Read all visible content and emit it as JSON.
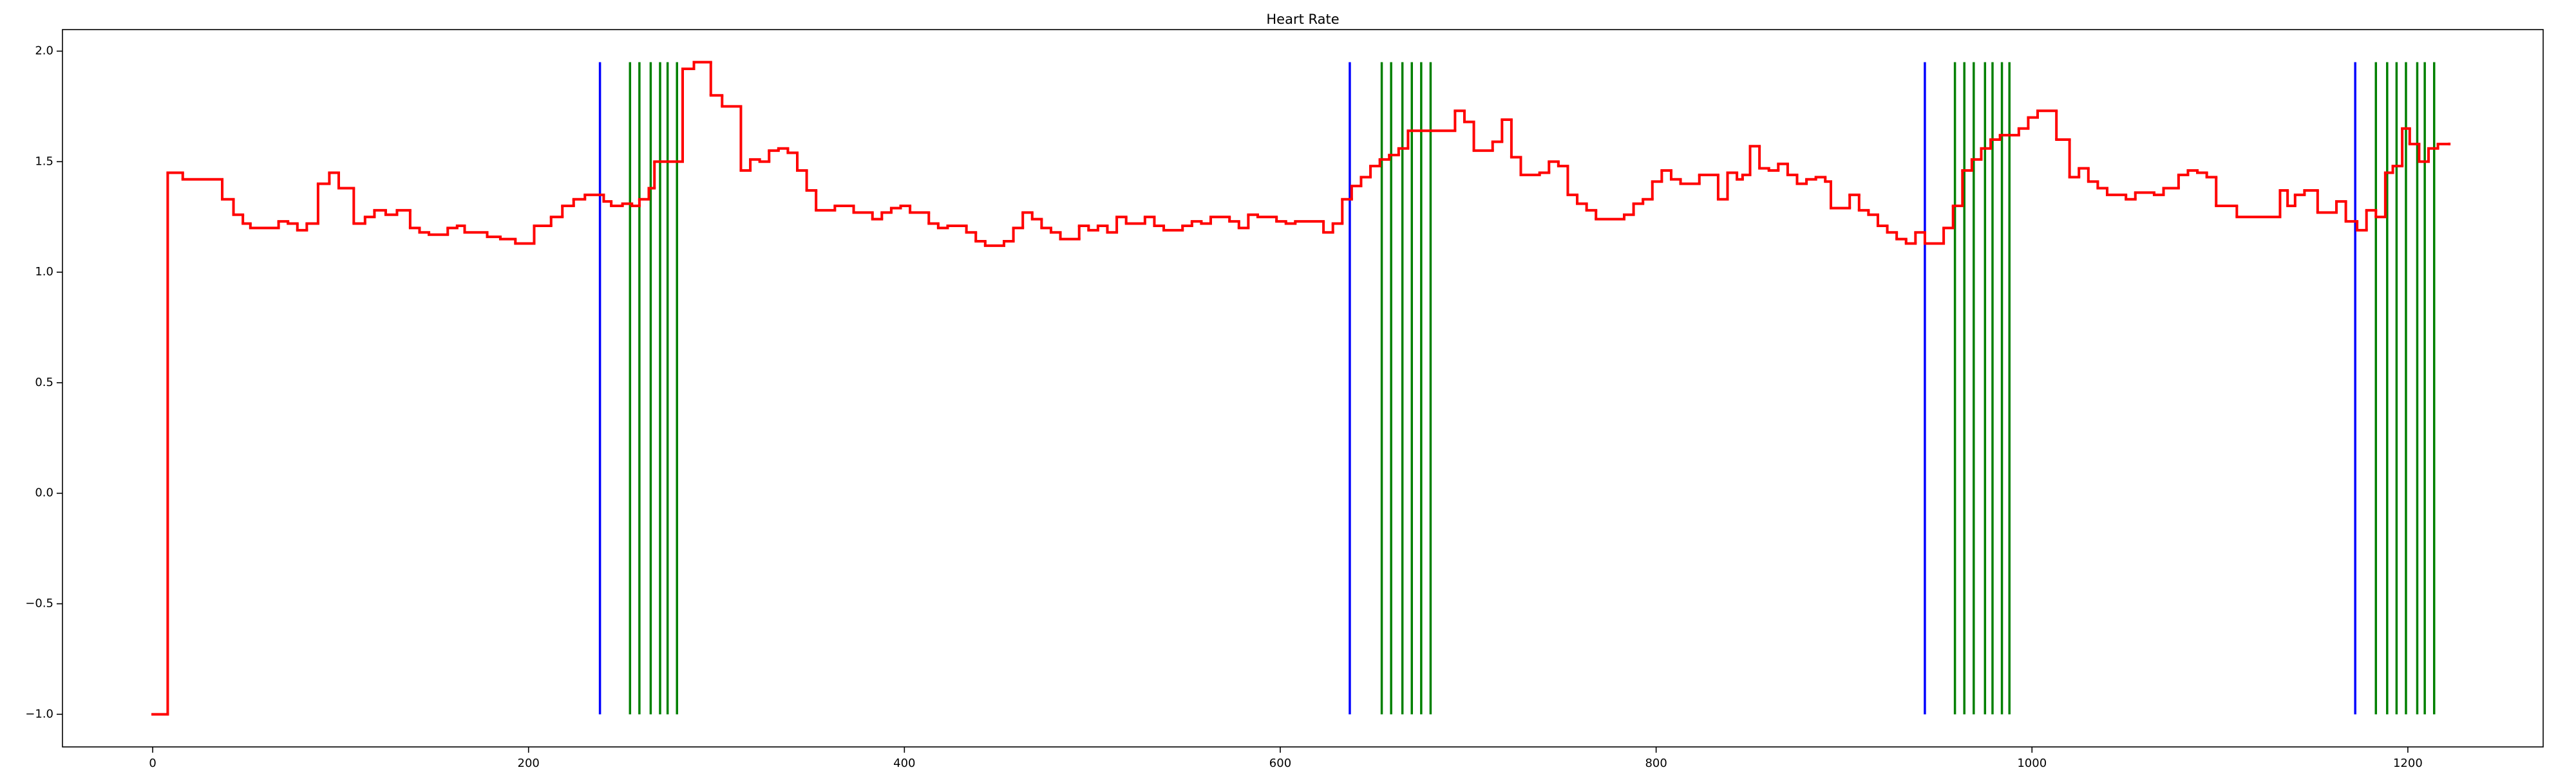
{
  "chart_data": {
    "type": "step",
    "title": "Heart Rate",
    "x": [
      0,
      8,
      16,
      37,
      43,
      48,
      52,
      67,
      72,
      77,
      82,
      88,
      94,
      99,
      107,
      113,
      118,
      124,
      130,
      137,
      142,
      147,
      157,
      162,
      166,
      178,
      185,
      193,
      203,
      212,
      218,
      224,
      230,
      240,
      244,
      250,
      255,
      259,
      264,
      267,
      282,
      288,
      297,
      303,
      313,
      318,
      323,
      328,
      333,
      338,
      343,
      348,
      353,
      363,
      373,
      383,
      388,
      393,
      398,
      403,
      413,
      418,
      423,
      433,
      438,
      443,
      453,
      458,
      463,
      468,
      473,
      478,
      483,
      493,
      498,
      503,
      508,
      513,
      518,
      528,
      533,
      538,
      548,
      553,
      558,
      563,
      573,
      578,
      583,
      588,
      598,
      603,
      608,
      623,
      628,
      633,
      638,
      643,
      648,
      653,
      658,
      663,
      668,
      693,
      698,
      703,
      713,
      718,
      723,
      728,
      738,
      743,
      748,
      753,
      758,
      763,
      768,
      783,
      788,
      793,
      798,
      803,
      808,
      813,
      823,
      833,
      838,
      843,
      846,
      850,
      855,
      860,
      865,
      870,
      875,
      880,
      885,
      890,
      893,
      903,
      908,
      913,
      918,
      923,
      928,
      933,
      938,
      943,
      953,
      958,
      963,
      968,
      973,
      978,
      983,
      993,
      998,
      1003,
      1013,
      1020,
      1025,
      1030,
      1035,
      1040,
      1050,
      1055,
      1065,
      1070,
      1078,
      1083,
      1088,
      1093,
      1098,
      1109,
      1132,
      1136,
      1140,
      1145,
      1152,
      1162,
      1167,
      1173,
      1178,
      1183,
      1188,
      1192,
      1197,
      1201,
      1206,
      1211,
      1216,
      1222
    ],
    "series": [
      {
        "color": "#ff0000",
        "values": [
          -1,
          1.45,
          1.42,
          1.33,
          1.26,
          1.22,
          1.2,
          1.23,
          1.22,
          1.19,
          1.22,
          1.4,
          1.45,
          1.38,
          1.22,
          1.25,
          1.28,
          1.26,
          1.28,
          1.2,
          1.18,
          1.17,
          1.2,
          1.21,
          1.18,
          1.16,
          1.15,
          1.13,
          1.21,
          1.25,
          1.3,
          1.33,
          1.35,
          1.32,
          1.3,
          1.31,
          1.3,
          1.33,
          1.38,
          1.5,
          1.92,
          1.95,
          1.8,
          1.75,
          1.46,
          1.51,
          1.5,
          1.55,
          1.56,
          1.54,
          1.46,
          1.37,
          1.28,
          1.3,
          1.27,
          1.24,
          1.27,
          1.29,
          1.3,
          1.27,
          1.22,
          1.2,
          1.21,
          1.18,
          1.14,
          1.12,
          1.14,
          1.2,
          1.27,
          1.24,
          1.2,
          1.18,
          1.15,
          1.21,
          1.19,
          1.21,
          1.18,
          1.25,
          1.22,
          1.25,
          1.21,
          1.19,
          1.21,
          1.23,
          1.22,
          1.25,
          1.23,
          1.2,
          1.26,
          1.25,
          1.23,
          1.22,
          1.23,
          1.18,
          1.22,
          1.33,
          1.39,
          1.43,
          1.48,
          1.51,
          1.53,
          1.56,
          1.64,
          1.73,
          1.68,
          1.55,
          1.59,
          1.69,
          1.52,
          1.44,
          1.45,
          1.5,
          1.48,
          1.35,
          1.31,
          1.28,
          1.24,
          1.26,
          1.31,
          1.33,
          1.41,
          1.46,
          1.42,
          1.4,
          1.44,
          1.33,
          1.45,
          1.42,
          1.44,
          1.57,
          1.47,
          1.46,
          1.49,
          1.44,
          1.4,
          1.42,
          1.43,
          1.41,
          1.29,
          1.35,
          1.28,
          1.26,
          1.21,
          1.18,
          1.15,
          1.13,
          1.18,
          1.13,
          1.2,
          1.3,
          1.46,
          1.51,
          1.56,
          1.6,
          1.62,
          1.65,
          1.7,
          1.73,
          1.6,
          1.43,
          1.47,
          1.41,
          1.38,
          1.35,
          1.33,
          1.36,
          1.35,
          1.38,
          1.44,
          1.46,
          1.45,
          1.43,
          1.3,
          1.25,
          1.37,
          1.3,
          1.35,
          1.37,
          1.27,
          1.32,
          1.23,
          1.19,
          1.28,
          1.25,
          1.45,
          1.48,
          1.65,
          1.58,
          1.5,
          1.56,
          1.58,
          1.58
        ]
      }
    ],
    "vertical_lines": [
      {
        "color": "#0000ff",
        "x": [
          238,
          637,
          943,
          1172
        ]
      },
      {
        "color": "#008000",
        "x": [
          254,
          259,
          265,
          270,
          274,
          279,
          654,
          659,
          665,
          670,
          675,
          680,
          959,
          964,
          969,
          975,
          979,
          984,
          988,
          1183,
          1189,
          1194,
          1199,
          1205,
          1209,
          1214
        ]
      }
    ],
    "vline_range": [
      -1,
      1.95
    ],
    "xlim": [
      -48,
      1272
    ],
    "ylim": [
      -1.1475,
      2.0975
    ],
    "xticks": [
      0,
      200,
      400,
      600,
      800,
      1000,
      1200
    ],
    "yticks": [
      {
        "value": -1,
        "label": "−1.0"
      },
      {
        "value": -0.5,
        "label": "−0.5"
      },
      {
        "value": 0,
        "label": "0.0"
      },
      {
        "value": 0.5,
        "label": "0.5"
      },
      {
        "value": 1,
        "label": "1.0"
      },
      {
        "value": 1.5,
        "label": "1.5"
      },
      {
        "value": 2,
        "label": "2.0"
      }
    ]
  }
}
